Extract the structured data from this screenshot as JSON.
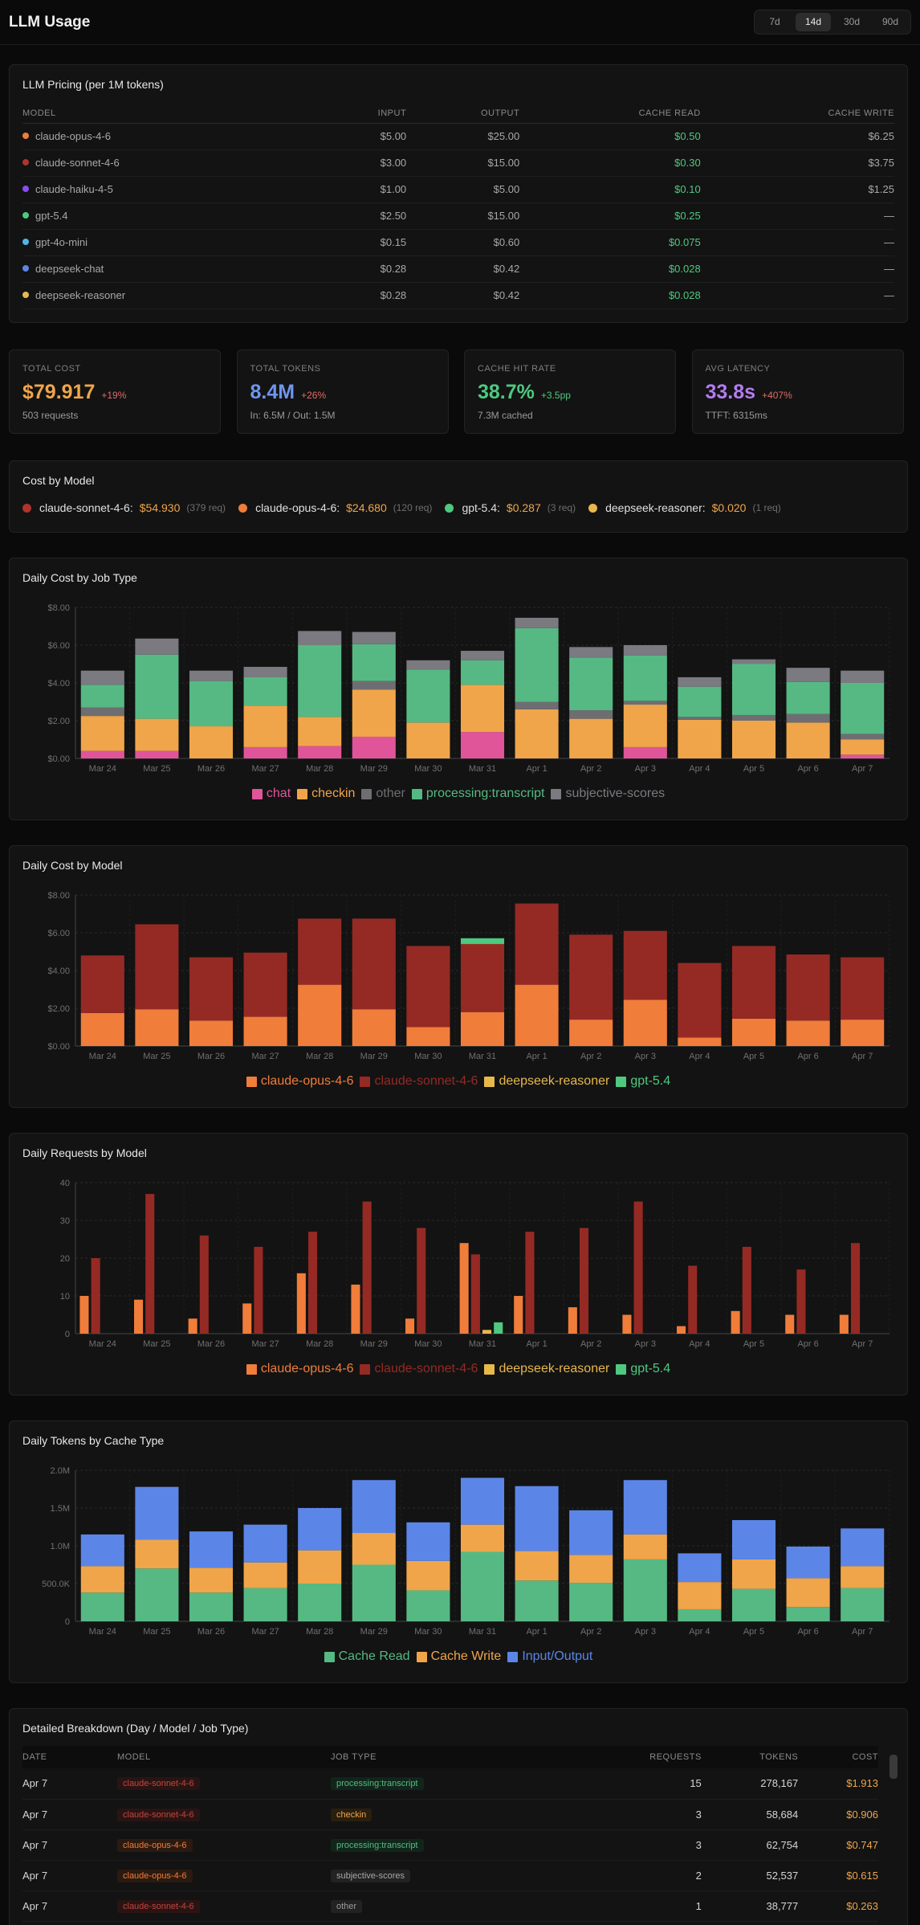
{
  "app": {
    "title": "LLM Usage",
    "ranges": [
      "7d",
      "14d",
      "30d",
      "90d"
    ],
    "active_range": "14d"
  },
  "pricing": {
    "title": "LLM Pricing (per 1M tokens)",
    "columns": [
      "MODEL",
      "INPUT",
      "OUTPUT",
      "CACHE READ",
      "CACHE WRITE"
    ],
    "rows": [
      {
        "model": "claude-opus-4-6",
        "color": "#f07d3a",
        "input": "$5.00",
        "output": "$25.00",
        "cache_read": "$0.50",
        "cache_write": "$6.25"
      },
      {
        "model": "claude-sonnet-4-6",
        "color": "#b0342c",
        "input": "$3.00",
        "output": "$15.00",
        "cache_read": "$0.30",
        "cache_write": "$3.75"
      },
      {
        "model": "claude-haiku-4-5",
        "color": "#8b4cf0",
        "input": "$1.00",
        "output": "$5.00",
        "cache_read": "$0.10",
        "cache_write": "$1.25"
      },
      {
        "model": "gpt-5.4",
        "color": "#4ec97f",
        "input": "$2.50",
        "output": "$15.00",
        "cache_read": "$0.25",
        "cache_write": "—"
      },
      {
        "model": "gpt-4o-mini",
        "color": "#52b4e6",
        "input": "$0.15",
        "output": "$0.60",
        "cache_read": "$0.075",
        "cache_write": "—"
      },
      {
        "model": "deepseek-chat",
        "color": "#5b86e8",
        "input": "$0.28",
        "output": "$0.42",
        "cache_read": "$0.028",
        "cache_write": "—"
      },
      {
        "model": "deepseek-reasoner",
        "color": "#e8b84a",
        "input": "$0.28",
        "output": "$0.42",
        "cache_read": "$0.028",
        "cache_write": "—"
      }
    ]
  },
  "stats": [
    {
      "label": "TOTAL COST",
      "value": "$79.917",
      "change": "+19%",
      "change_color": "#e06a6a",
      "sub": "503 requests",
      "color": "#f0a54a"
    },
    {
      "label": "TOTAL TOKENS",
      "value": "8.4M",
      "change": "+26%",
      "change_color": "#e06a6a",
      "sub": "In: 6.5M / Out: 1.5M",
      "color": "#6e96f0"
    },
    {
      "label": "CACHE HIT RATE",
      "value": "38.7%",
      "change": "+3.5pp",
      "change_color": "#4ec97f",
      "sub": "7.3M cached",
      "color": "#4ec97f"
    },
    {
      "label": "AVG LATENCY",
      "value": "33.8s",
      "change": "+407%",
      "change_color": "#e06a6a",
      "sub": "TTFT: 6315ms",
      "color": "#b47cf0"
    }
  ],
  "cost_by_model": {
    "title": "Cost by Model",
    "items": [
      {
        "name": "claude-sonnet-4-6:",
        "cost": "$54.930",
        "req": "(379 req)",
        "color": "#b0342c"
      },
      {
        "name": "claude-opus-4-6:",
        "cost": "$24.680",
        "req": "(120 req)",
        "color": "#f07d3a"
      },
      {
        "name": "gpt-5.4:",
        "cost": "$0.287",
        "req": "(3 req)",
        "color": "#4ec97f"
      },
      {
        "name": "deepseek-reasoner:",
        "cost": "$0.020",
        "req": "(1 req)",
        "color": "#e8b84a"
      }
    ]
  },
  "chart_data": [
    {
      "type": "bar",
      "stacked": true,
      "title": "Daily Cost by Job Type",
      "categories": [
        "Mar 24",
        "Mar 25",
        "Mar 26",
        "Mar 27",
        "Mar 28",
        "Mar 29",
        "Mar 30",
        "Mar 31",
        "Apr 1",
        "Apr 2",
        "Apr 3",
        "Apr 4",
        "Apr 5",
        "Apr 6",
        "Apr 7"
      ],
      "y_ticks": [
        "$0.00",
        "$2.00",
        "$4.00",
        "$6.00",
        "$8.00"
      ],
      "ylim": [
        0,
        8
      ],
      "legend": "bottom-center",
      "series": [
        {
          "name": "chat",
          "color": "#e0559a",
          "values": [
            0.4,
            0.4,
            0,
            0.6,
            0.65,
            1.15,
            0,
            1.4,
            0,
            0,
            0.6,
            0,
            0,
            0,
            0.2
          ]
        },
        {
          "name": "checkin",
          "color": "#f0a54a",
          "values": [
            1.85,
            1.7,
            1.7,
            2.2,
            1.55,
            2.5,
            1.9,
            2.5,
            2.6,
            2.1,
            2.25,
            2.05,
            2.0,
            1.9,
            0.8
          ]
        },
        {
          "name": "other",
          "color": "#6e6e72",
          "values": [
            0.45,
            0,
            0,
            0,
            0,
            0.45,
            0,
            0,
            0.4,
            0.45,
            0.2,
            0.15,
            0.3,
            0.45,
            0.3
          ]
        },
        {
          "name": "processing:transcript",
          "color": "#56b983",
          "values": [
            1.2,
            3.4,
            2.4,
            1.5,
            3.8,
            1.95,
            2.8,
            1.3,
            3.9,
            2.8,
            2.4,
            1.6,
            2.7,
            1.7,
            2.7
          ]
        },
        {
          "name": "subjective-scores",
          "color": "#7a7a80",
          "values": [
            0.75,
            0.85,
            0.55,
            0.55,
            0.75,
            0.65,
            0.5,
            0.5,
            0.55,
            0.55,
            0.55,
            0.5,
            0.25,
            0.75,
            0.65
          ]
        }
      ]
    },
    {
      "type": "bar",
      "stacked": true,
      "title": "Daily Cost by Model",
      "categories": [
        "Mar 24",
        "Mar 25",
        "Mar 26",
        "Mar 27",
        "Mar 28",
        "Mar 29",
        "Mar 30",
        "Mar 31",
        "Apr 1",
        "Apr 2",
        "Apr 3",
        "Apr 4",
        "Apr 5",
        "Apr 6",
        "Apr 7"
      ],
      "y_ticks": [
        "$0.00",
        "$2.00",
        "$4.00",
        "$6.00",
        "$8.00"
      ],
      "ylim": [
        0,
        8
      ],
      "legend": "bottom-center",
      "series": [
        {
          "name": "claude-opus-4-6",
          "color": "#f07d3a",
          "values": [
            1.75,
            1.95,
            1.35,
            1.55,
            3.25,
            1.95,
            1.0,
            1.8,
            3.25,
            1.4,
            2.45,
            0.45,
            1.45,
            1.35,
            1.4
          ]
        },
        {
          "name": "claude-sonnet-4-6",
          "color": "#952a24",
          "values": [
            3.05,
            4.5,
            3.35,
            3.4,
            3.5,
            4.8,
            4.3,
            3.6,
            4.3,
            4.5,
            3.65,
            3.95,
            3.85,
            3.5,
            3.3
          ]
        },
        {
          "name": "deepseek-reasoner",
          "color": "#e8b84a",
          "values": [
            0,
            0,
            0,
            0,
            0,
            0,
            0,
            0.02,
            0,
            0,
            0,
            0,
            0,
            0,
            0
          ]
        },
        {
          "name": "gpt-5.4",
          "color": "#4ec97f",
          "values": [
            0,
            0,
            0,
            0,
            0,
            0,
            0,
            0.29,
            0,
            0,
            0,
            0,
            0,
            0,
            0
          ]
        }
      ]
    },
    {
      "type": "bar",
      "stacked": false,
      "title": "Daily Requests by Model",
      "categories": [
        "Mar 24",
        "Mar 25",
        "Mar 26",
        "Mar 27",
        "Mar 28",
        "Mar 29",
        "Mar 30",
        "Mar 31",
        "Apr 1",
        "Apr 2",
        "Apr 3",
        "Apr 4",
        "Apr 5",
        "Apr 6",
        "Apr 7"
      ],
      "y_ticks": [
        "0",
        "10",
        "20",
        "30",
        "40"
      ],
      "ylim": [
        0,
        40
      ],
      "legend": "bottom-center",
      "series": [
        {
          "name": "claude-opus-4-6",
          "color": "#f07d3a",
          "values": [
            10,
            9,
            4,
            8,
            16,
            13,
            4,
            24,
            10,
            7,
            5,
            2,
            6,
            5,
            5
          ]
        },
        {
          "name": "claude-sonnet-4-6",
          "color": "#952a24",
          "values": [
            20,
            37,
            26,
            23,
            27,
            35,
            28,
            21,
            27,
            28,
            35,
            18,
            23,
            17,
            24
          ]
        },
        {
          "name": "deepseek-reasoner",
          "color": "#e8b84a",
          "values": [
            0,
            0,
            0,
            0,
            0,
            0,
            0,
            1,
            0,
            0,
            0,
            0,
            0,
            0,
            0
          ]
        },
        {
          "name": "gpt-5.4",
          "color": "#4ec97f",
          "values": [
            0,
            0,
            0,
            0,
            0,
            0,
            0,
            3,
            0,
            0,
            0,
            0,
            0,
            0,
            0
          ]
        }
      ]
    },
    {
      "type": "bar",
      "stacked": true,
      "title": "Daily Tokens by Cache Type",
      "categories": [
        "Mar 24",
        "Mar 25",
        "Mar 26",
        "Mar 27",
        "Mar 28",
        "Mar 29",
        "Mar 30",
        "Mar 31",
        "Apr 1",
        "Apr 2",
        "Apr 3",
        "Apr 4",
        "Apr 5",
        "Apr 6",
        "Apr 7"
      ],
      "y_ticks": [
        "0",
        "500.0K",
        "1.0M",
        "1.5M",
        "2.0M"
      ],
      "ylim": [
        0,
        2000000
      ],
      "legend": "bottom-center",
      "series": [
        {
          "name": "Cache Read",
          "color": "#56b983",
          "values": [
            380000,
            700000,
            380000,
            440000,
            500000,
            750000,
            410000,
            920000,
            540000,
            510000,
            820000,
            160000,
            430000,
            190000,
            440000
          ]
        },
        {
          "name": "Cache Write",
          "color": "#f0a54a",
          "values": [
            350000,
            380000,
            330000,
            340000,
            440000,
            420000,
            390000,
            360000,
            390000,
            370000,
            330000,
            360000,
            390000,
            380000,
            290000
          ]
        },
        {
          "name": "Input/Output",
          "color": "#5b86e8",
          "values": [
            420000,
            700000,
            480000,
            500000,
            560000,
            700000,
            510000,
            620000,
            860000,
            590000,
            720000,
            380000,
            520000,
            420000,
            500000
          ]
        }
      ]
    }
  ],
  "breakdown": {
    "title": "Detailed Breakdown (Day / Model / Job Type)",
    "columns": [
      "DATE",
      "MODEL",
      "JOB TYPE",
      "REQUESTS",
      "TOKENS",
      "COST"
    ],
    "rows": [
      {
        "date": "Apr 7",
        "model": "claude-sonnet-4-6",
        "job": "processing:transcript",
        "requests": "15",
        "tokens": "278,167",
        "cost": "$1.913"
      },
      {
        "date": "Apr 7",
        "model": "claude-sonnet-4-6",
        "job": "checkin",
        "requests": "3",
        "tokens": "58,684",
        "cost": "$0.906"
      },
      {
        "date": "Apr 7",
        "model": "claude-opus-4-6",
        "job": "processing:transcript",
        "requests": "3",
        "tokens": "62,754",
        "cost": "$0.747"
      },
      {
        "date": "Apr 7",
        "model": "claude-opus-4-6",
        "job": "subjective-scores",
        "requests": "2",
        "tokens": "52,537",
        "cost": "$0.615"
      },
      {
        "date": "Apr 7",
        "model": "claude-sonnet-4-6",
        "job": "other",
        "requests": "1",
        "tokens": "38,777",
        "cost": "$0.263"
      }
    ]
  }
}
